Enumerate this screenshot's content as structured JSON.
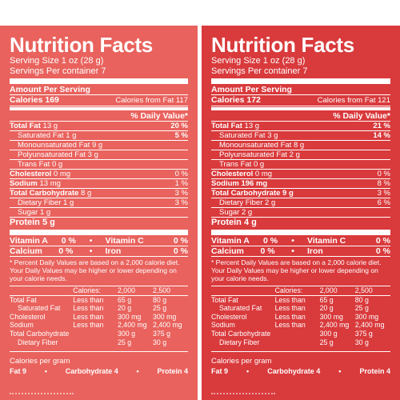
{
  "labels": [
    {
      "title": "Nutrition Facts",
      "serving_size": "Serving Size 1 oz (28 g)",
      "servings": "Servings Per container 7",
      "amount_per_serving": "Amount Per Serving",
      "calories": "Calories 169",
      "calories_fat": "Calories from Fat 117",
      "dv_header": "% Daily Value*",
      "total_fat": {
        "label": "Total Fat",
        "value": "13 g",
        "dv": "20 %"
      },
      "sat_fat": {
        "label": "Saturated Fat",
        "value": "1 g",
        "dv": "5 %"
      },
      "mono_fat": {
        "label": "Monounsaturated Fat",
        "value": "9 g"
      },
      "poly_fat": {
        "label": "Polyunsaturated Fat",
        "value": "3 g"
      },
      "trans_fat": {
        "label": "Trans Fat",
        "value": "0 g"
      },
      "cholesterol": {
        "label": "Cholesterol",
        "value": "0 mg",
        "dv": "0 %"
      },
      "sodium": {
        "label": "Sodium",
        "value": "13 mg",
        "dv": "1 %"
      },
      "carb": {
        "label": "Total Carbohydrate",
        "value": "8 g",
        "dv": "3 %"
      },
      "fiber": {
        "label": "Dietary Fiber",
        "value": "1 g",
        "dv": "3 %"
      },
      "sugar": {
        "label": "Sugar",
        "value": "1 g"
      },
      "protein": {
        "label": "Protein",
        "value": "5 g"
      },
      "vit_a": {
        "label": "Vitamin A",
        "value": "0 %"
      },
      "vit_c": {
        "label": "Vitamin C",
        "value": "0 %"
      },
      "calcium": {
        "label": "Calcium",
        "value": "0 %"
      },
      "iron": {
        "label": "Iron",
        "value": "0 %"
      }
    },
    {
      "title": "Nutrition Facts",
      "serving_size": "Serving Size 1 oz (28 g)",
      "servings": "Servings Per container 7",
      "amount_per_serving": "Amount Per Serving",
      "calories": "Calories 172",
      "calories_fat": "Calories from Fat 121",
      "dv_header": "% Daily Value*",
      "total_fat": {
        "label": "Total Fat",
        "value": "13 g",
        "dv": "21 %"
      },
      "sat_fat": {
        "label": "Saturated Fat",
        "value": "3 g",
        "dv": "14 %"
      },
      "mono_fat": {
        "label": "Monounsaturated Fat",
        "value": "8 g"
      },
      "poly_fat": {
        "label": "Polyunsaturated Fat",
        "value": "2 g"
      },
      "trans_fat": {
        "label": "Trans Fat",
        "value": "0 g"
      },
      "cholesterol": {
        "label": "Cholesterol",
        "value": "0 mg",
        "dv": "0 %"
      },
      "sodium": {
        "label": "Sodium",
        "value": "196 mg",
        "dv": "8 %"
      },
      "carb": {
        "label": "Total Carbohydrate",
        "value": "9 g",
        "dv": "3 %"
      },
      "fiber": {
        "label": "Dietary Fiber",
        "value": "2 g",
        "dv": "6 %"
      },
      "sugar": {
        "label": "Sugar",
        "value": "2 g"
      },
      "protein": {
        "label": "Protein",
        "value": "4 g"
      },
      "vit_a": {
        "label": "Vitamin A",
        "value": "0 %"
      },
      "vit_c": {
        "label": "Vitamin C",
        "value": "0 %"
      },
      "calcium": {
        "label": "Calcium",
        "value": "0 %"
      },
      "iron": {
        "label": "Iron",
        "value": "0 %"
      }
    }
  ],
  "footnote": "* Percent Daily Values are based on a 2,000 calorie diet. Your Daily Values may be higher or lower depending on your calorie needs.",
  "ref_table": {
    "header": [
      "",
      "Calories:",
      "2,000",
      "2,500"
    ],
    "rows": [
      [
        "Total Fat",
        "Less than",
        "65 g",
        "80 g"
      ],
      [
        "Saturated Fat",
        "Less than",
        "20 g",
        "25 g"
      ],
      [
        "Cholesterol",
        "Less than",
        "300 mg",
        "300 mg"
      ],
      [
        "Sodium",
        "Less than",
        "2,400 mg",
        "2,400 mg"
      ],
      [
        "Total Carbohydrate",
        "",
        "300 g",
        "375 g"
      ],
      [
        "Dietary Fiber",
        "",
        "25 g",
        "30 g"
      ]
    ]
  },
  "calories_per_gram": "Calories per gram",
  "cpg": {
    "fat": "Fat 9",
    "carb": "Carbohydrate 4",
    "protein": "Protein 4"
  },
  "colors": {
    "left_panel": "#e9625d",
    "right_panel": "#d93a3c",
    "text": "#ffffff"
  }
}
